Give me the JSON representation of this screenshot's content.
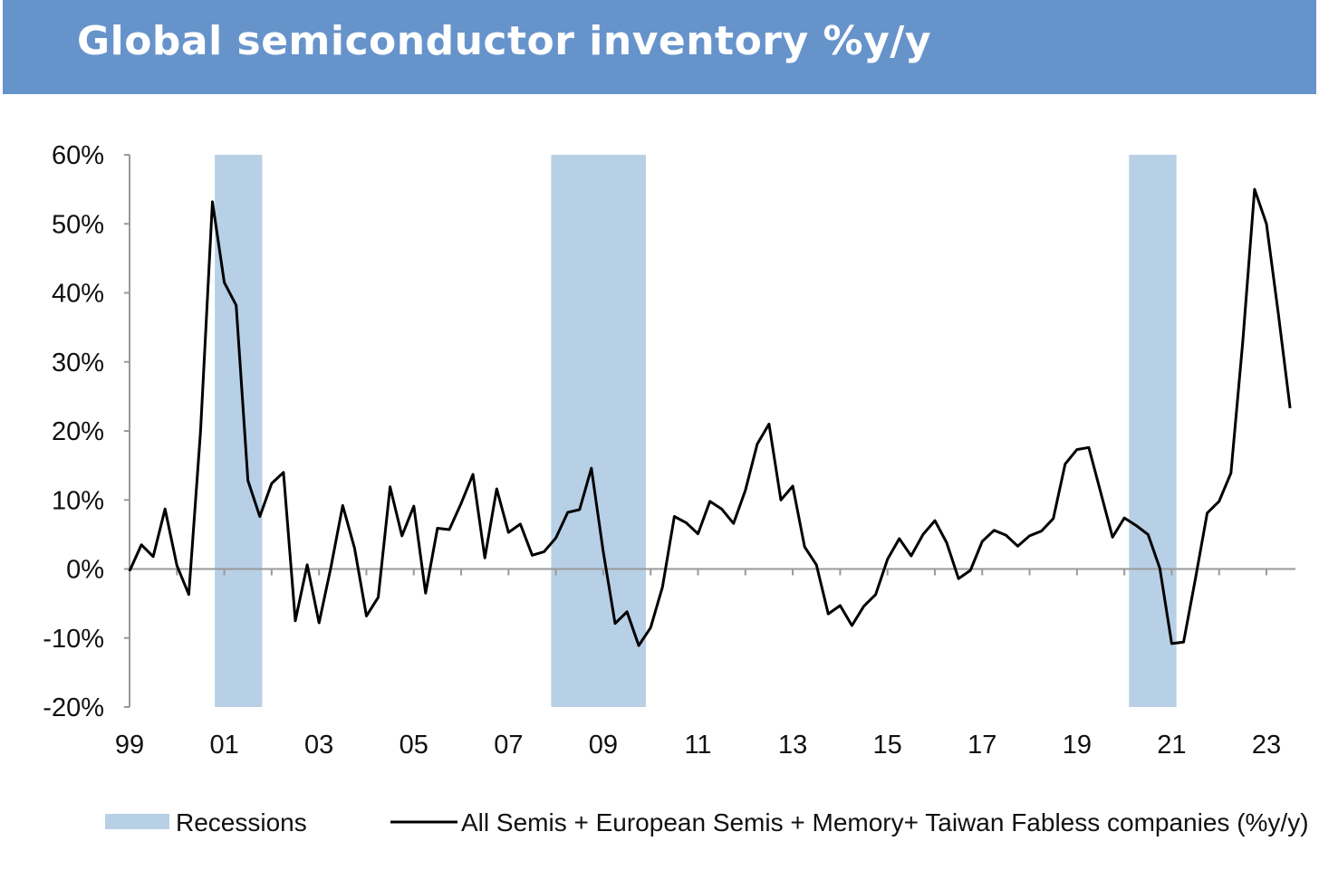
{
  "title": "Global semiconductor inventory %y/y",
  "colors": {
    "banner": "#6793cb",
    "recession": "#b7d0e6",
    "line": "#000000",
    "axis": "#999999"
  },
  "chart_data": {
    "type": "line",
    "title": "Global semiconductor inventory %y/y",
    "ylim": [
      -20,
      60
    ],
    "y_ticks": [
      "60%",
      "50%",
      "40%",
      "30%",
      "20%",
      "10%",
      "0%",
      "-10%",
      "-20%"
    ],
    "y_tick_values": [
      60,
      50,
      40,
      30,
      20,
      10,
      0,
      -10,
      -20
    ],
    "xlim": [
      1999,
      2023.7
    ],
    "x_ticks": [
      "99",
      "01",
      "03",
      "05",
      "07",
      "09",
      "11",
      "13",
      "15",
      "17",
      "19",
      "21",
      "23"
    ],
    "x_tick_values": [
      1999,
      2001,
      2003,
      2005,
      2007,
      2009,
      2011,
      2013,
      2015,
      2017,
      2019,
      2021,
      2023
    ],
    "grid": false,
    "legend_position": "bottom",
    "recessions": [
      {
        "start": 2000.8,
        "end": 2001.8
      },
      {
        "start": 2007.9,
        "end": 2009.9
      },
      {
        "start": 2020.1,
        "end": 2021.1
      }
    ],
    "series": [
      {
        "name": "All Semis + European Semis + Memory+ Taiwan Fabless companies (%y/y)",
        "x": [
          1999.0,
          1999.25,
          1999.5,
          1999.75,
          2000.0,
          2000.25,
          2000.5,
          2000.75,
          2001.0,
          2001.25,
          2001.5,
          2001.75,
          2002.0,
          2002.25,
          2002.5,
          2002.75,
          2003.0,
          2003.25,
          2003.5,
          2003.75,
          2004.0,
          2004.25,
          2004.5,
          2004.75,
          2005.0,
          2005.25,
          2005.5,
          2005.75,
          2006.0,
          2006.25,
          2006.5,
          2006.75,
          2007.0,
          2007.25,
          2007.5,
          2007.75,
          2008.0,
          2008.25,
          2008.5,
          2008.75,
          2009.0,
          2009.25,
          2009.5,
          2009.75,
          2010.0,
          2010.25,
          2010.5,
          2010.75,
          2011.0,
          2011.25,
          2011.5,
          2011.75,
          2012.0,
          2012.25,
          2012.5,
          2012.75,
          2013.0,
          2013.25,
          2013.5,
          2013.75,
          2014.0,
          2014.25,
          2014.5,
          2014.75,
          2015.0,
          2015.25,
          2015.5,
          2015.75,
          2016.0,
          2016.25,
          2016.5,
          2016.75,
          2017.0,
          2017.25,
          2017.5,
          2017.75,
          2018.0,
          2018.25,
          2018.5,
          2018.75,
          2019.0,
          2019.25,
          2019.5,
          2019.75,
          2020.0,
          2020.25,
          2020.5,
          2020.75,
          2021.0,
          2021.25,
          2021.5,
          2021.75,
          2022.0,
          2022.25,
          2022.5,
          2022.75,
          2023.0,
          2023.25,
          2023.5
        ],
        "values": [
          -0.3,
          3.5,
          1.8,
          8.7,
          0.5,
          -3.7,
          20,
          53.2,
          41.5,
          38.2,
          12.8,
          7.6,
          12.4,
          14.0,
          -7.5,
          0.6,
          -7.8,
          0.2,
          9.2,
          3.0,
          -6.8,
          -4.1,
          11.9,
          4.8,
          9.1,
          -3.5,
          5.9,
          5.7,
          9.5,
          13.7,
          1.6,
          11.6,
          5.3,
          6.5,
          2.0,
          2.5,
          4.5,
          8.2,
          8.6,
          14.6,
          2.5,
          -7.9,
          -6.2,
          -11.1,
          -8.5,
          -2.6,
          7.6,
          6.7,
          5.1,
          9.8,
          8.7,
          6.6,
          11.4,
          18.1,
          21.0,
          10.0,
          12.0,
          3.2,
          0.6,
          -6.5,
          -5.3,
          -8.2,
          -5.4,
          -3.7,
          1.4,
          4.4,
          1.9,
          5.0,
          7.0,
          3.8,
          -1.4,
          -0.2,
          4.0,
          5.6,
          4.9,
          3.3,
          4.8,
          5.5,
          7.3,
          15.2,
          17.3,
          17.6,
          11.1,
          4.6,
          7.4,
          6.3,
          5.0,
          0.1,
          -10.8,
          -10.6,
          -1.4,
          8.1,
          9.8,
          13.9,
          33.0,
          55.0,
          50.0,
          37.0,
          23.3
        ]
      }
    ],
    "legend": [
      {
        "type": "patch",
        "label": "Recessions"
      },
      {
        "type": "line",
        "label": "All Semis + European Semis + Memory+ Taiwan Fabless companies (%y/y)"
      }
    ]
  }
}
